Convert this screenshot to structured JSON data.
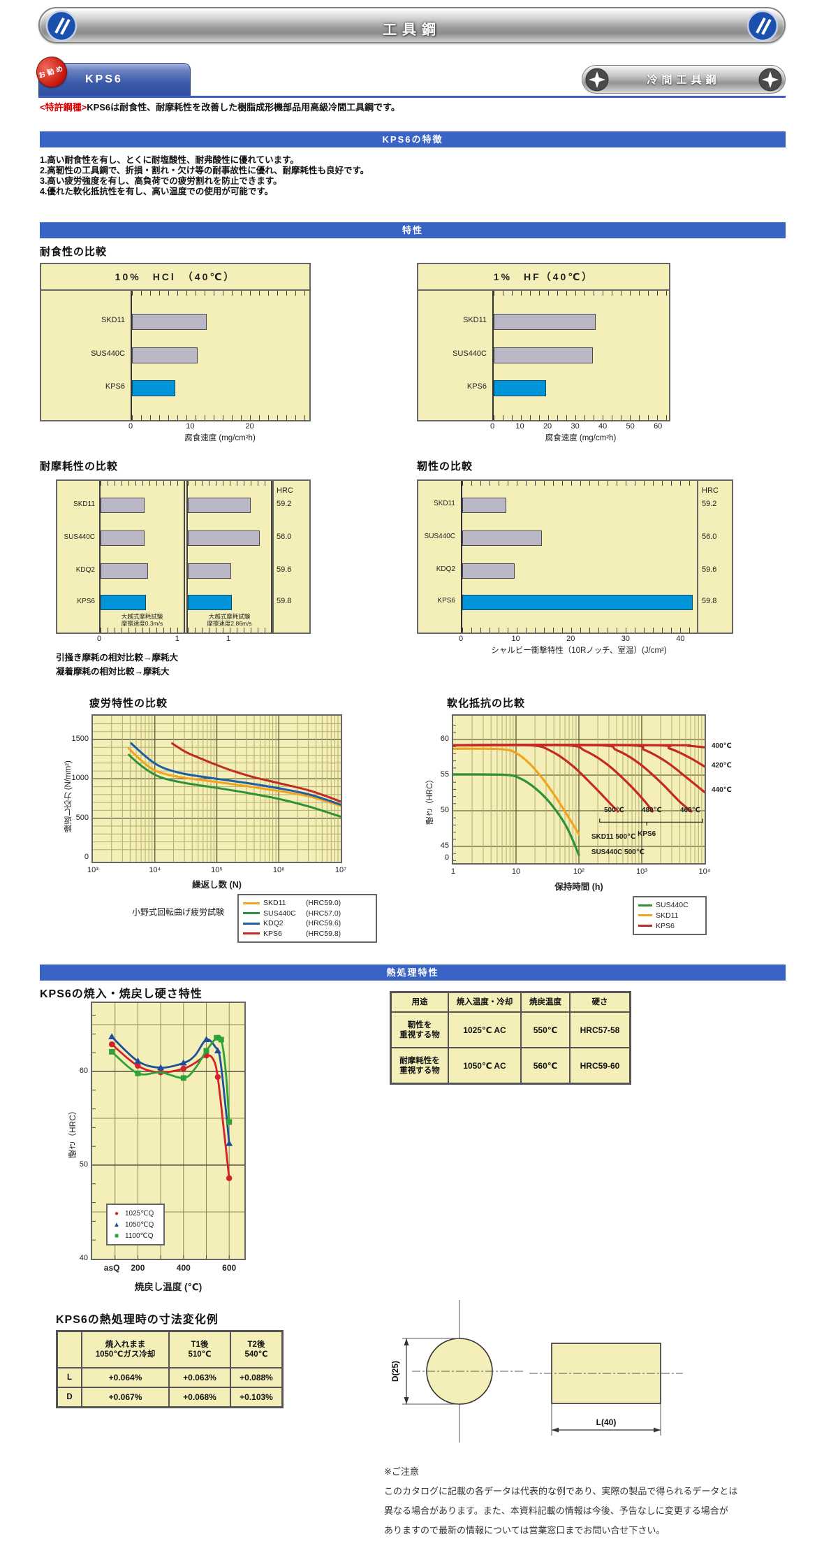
{
  "header": {
    "title": "工具鋼"
  },
  "tab": {
    "badge": "お勧め",
    "label": "KPS6"
  },
  "nav": {
    "label": "冷間工具鋼"
  },
  "intro": {
    "patent": "<特許鋼種>",
    "text": "KPS6は耐食性、耐摩耗性を改善した樹脂成形機部品用高級冷間工具鋼です。"
  },
  "banners": {
    "features": "KPS6の特徴",
    "properties": "特性",
    "heat": "熱処理特性"
  },
  "features": [
    "1.高い耐食性を有し、とくに耐塩酸性、耐弗酸性に優れています。",
    "2.高靭性の工具鋼で、折損・割れ・欠け等の耐事故性に優れ、耐摩耗性も良好です。",
    "3.高い疲労強度を有し、高負荷での疲労割れを防止できます。",
    "4.優れた軟化抵抗性を有し、高い温度での使用が可能です。"
  ],
  "headings": {
    "corrosion": "耐食性の比較",
    "wear": "耐摩耗性の比較",
    "toughness": "靭性の比較",
    "fatigue": "疲労特性の比較",
    "softening": "軟化抵抗の比較",
    "hardening": "KPS6の焼入・焼戻し硬さ特性",
    "dimension": "KPS6の熱処理時の寸法変化例"
  },
  "wear_footnotes": [
    "引掻き摩耗の相対比較→摩耗大",
    "凝着摩耗の相対比較→摩耗大"
  ],
  "chart_data": [
    {
      "id": "hcl",
      "type": "bar",
      "title": "10%　HCl　（40℃）",
      "categories": [
        "SKD11",
        "SUS440C",
        "KPS6"
      ],
      "values": [
        12.5,
        11,
        7.3
      ],
      "xmax": 30,
      "xticks": [
        0,
        10,
        20
      ],
      "xlabel": "腐食速度 (mg/cm²h)",
      "highlight": "KPS6",
      "bar_color": "#b9b7c5",
      "highlight_color": "#0095d8"
    },
    {
      "id": "hf",
      "type": "bar",
      "title": "1%　HF（40℃）",
      "categories": [
        "SKD11",
        "SUS440C",
        "KPS6"
      ],
      "values": [
        37,
        36,
        19
      ],
      "xmax": 64,
      "xticks": [
        0,
        10,
        20,
        30,
        40,
        50,
        60
      ],
      "xlabel": "腐食速度 (mg/cm²h)",
      "highlight": "KPS6",
      "bar_color": "#b9b7c5",
      "highlight_color": "#0095d8"
    },
    {
      "id": "wear",
      "type": "bar-grouped",
      "categories": [
        "SKD11",
        "SUS440C",
        "KDQ2",
        "KPS6"
      ],
      "hrc_header": "HRC",
      "hrc": [
        "59.2",
        "56.0",
        "59.6",
        "59.8"
      ],
      "highlight": "KPS6",
      "panels": [
        {
          "note": "大越式摩耗試験\n摩擦速度0.3m/s",
          "values": [
            0.56,
            0.56,
            0.61,
            0.58
          ],
          "xmax": 1.1
        },
        {
          "note": "大越式摩耗試験\n摩擦速度2.86m/s",
          "values": [
            1.5,
            1.72,
            1.03,
            1.05
          ],
          "xmax": 2.05
        }
      ],
      "xticks": [
        0,
        1
      ]
    },
    {
      "id": "toughness",
      "type": "bar",
      "categories": [
        "SKD11",
        "SUS440C",
        "KDQ2",
        "KPS6"
      ],
      "values": [
        8,
        14.5,
        9.5,
        42
      ],
      "xmax": 43,
      "xticks": [
        0,
        10,
        20,
        30,
        40
      ],
      "xlabel": "シャルビー衝撃特性（10Rノッチ、室温）(J/cm²)",
      "highlight": "KPS6",
      "hrc_header": "HRC",
      "hrc": [
        "59.2",
        "56.0",
        "59.6",
        "59.8"
      ],
      "bar_color": "#b9b7c5",
      "highlight_color": "#0095d8"
    },
    {
      "id": "fatigue",
      "type": "line",
      "title": "疲労特性の比較",
      "xlabel": "繰返し数 (N)",
      "ylabel": "繰返し応力 (N/mm²)",
      "xticklabels": [
        "10³",
        "10⁴",
        "10⁵",
        "10⁶",
        "10⁷"
      ],
      "yticks": [
        0,
        500,
        1000,
        1500
      ],
      "note": "小野式回転曲げ疲労試験",
      "series": [
        {
          "name": "SKD11",
          "hrc": "(HRC59.0)",
          "color": "#f2a41f",
          "points": [
            [
              3.58,
              1385
            ],
            [
              3.75,
              1255
            ],
            [
              3.95,
              1130
            ],
            [
              4.15,
              1065
            ],
            [
              4.5,
              1010
            ],
            [
              5,
              960
            ],
            [
              5.5,
              905
            ],
            [
              6,
              845
            ],
            [
              6.5,
              775
            ],
            [
              7,
              655
            ]
          ]
        },
        {
          "name": "SUS440C",
          "hrc": "(HRC57.0)",
          "color": "#2f9138",
          "points": [
            [
              3.58,
              1305
            ],
            [
              3.75,
              1185
            ],
            [
              3.95,
              1075
            ],
            [
              4.15,
              1005
            ],
            [
              4.5,
              945
            ],
            [
              5,
              885
            ],
            [
              5.5,
              820
            ],
            [
              6,
              745
            ],
            [
              6.5,
              645
            ],
            [
              7,
              520
            ]
          ]
        },
        {
          "name": "KDQ2",
          "hrc": "(HRC59.6)",
          "color": "#1c5ea6",
          "points": [
            [
              3.62,
              1450
            ],
            [
              3.8,
              1320
            ],
            [
              4,
              1195
            ],
            [
              4.2,
              1120
            ],
            [
              4.5,
              1060
            ],
            [
              5,
              1000
            ],
            [
              5.5,
              945
            ],
            [
              6,
              880
            ],
            [
              6.5,
              800
            ],
            [
              7,
              672
            ]
          ]
        },
        {
          "name": "KPS6",
          "hrc": "(HRC59.8)",
          "color": "#c32a24",
          "points": [
            [
              4.28,
              1450
            ],
            [
              4.5,
              1340
            ],
            [
              4.75,
              1255
            ],
            [
              5,
              1175
            ],
            [
              5.3,
              1090
            ],
            [
              5.6,
              1020
            ],
            [
              6,
              945
            ],
            [
              6.5,
              850
            ],
            [
              7,
              712
            ]
          ]
        }
      ]
    },
    {
      "id": "softening",
      "type": "line",
      "title": "軟化抵抗の比較",
      "xlabel": "保持時間 (h)",
      "ylabel": "硬さ（HRC）",
      "xticklabels": [
        "1",
        "10",
        "10²",
        "10³",
        "10⁴"
      ],
      "yticks": [
        60,
        55,
        50,
        45
      ],
      "ytick_zero": "0",
      "legend": [
        {
          "name": "SUS440C",
          "color": "#2f9138"
        },
        {
          "name": "SKD11",
          "color": "#f2a41f"
        },
        {
          "name": "KPS6",
          "color": "#c32a24"
        }
      ],
      "series": [
        {
          "name": "SUS440C 500℃",
          "color": "#2f9138",
          "points": [
            [
              0,
              55.1
            ],
            [
              0.8,
              55.05
            ],
            [
              1.05,
              54.6
            ],
            [
              1.3,
              53.2
            ],
            [
              1.55,
              51
            ],
            [
              1.8,
              47.8
            ],
            [
              2,
              43.8
            ]
          ]
        },
        {
          "name": "SKD11 500℃",
          "color": "#f2a41f",
          "points": [
            [
              0,
              58.7
            ],
            [
              0.75,
              58.65
            ],
            [
              1,
              58.1
            ],
            [
              1.25,
              56.3
            ],
            [
              1.5,
              53.6
            ],
            [
              1.75,
              50.3
            ],
            [
              2,
              46.7
            ]
          ]
        },
        {
          "name": "KPS6 500℃",
          "color": "#c32a24",
          "points": [
            [
              0,
              59.2
            ],
            [
              1.2,
              59.2
            ],
            [
              1.55,
              58.4
            ],
            [
              1.9,
              56.3
            ],
            [
              2.25,
              53.3
            ],
            [
              2.5,
              51
            ],
            [
              2.62,
              49.9
            ]
          ]
        },
        {
          "name": "KPS6 480℃",
          "color": "#c32a24",
          "points": [
            [
              0,
              59.2
            ],
            [
              1.75,
              59.2
            ],
            [
              2.1,
              58.4
            ],
            [
              2.45,
              56.5
            ],
            [
              2.8,
              53.7
            ],
            [
              3.05,
              51.3
            ],
            [
              3.17,
              49.9
            ]
          ]
        },
        {
          "name": "KPS6 460℃",
          "color": "#c32a24",
          "points": [
            [
              0,
              59.2
            ],
            [
              2.25,
              59.2
            ],
            [
              2.6,
              58.5
            ],
            [
              2.95,
              56.7
            ],
            [
              3.3,
              54
            ],
            [
              3.6,
              51.3
            ],
            [
              3.79,
              49.9
            ]
          ]
        },
        {
          "name": "KPS6 440℃",
          "color": "#c32a24",
          "points": [
            [
              0,
              59.2
            ],
            [
              2.7,
              59.2
            ],
            [
              3.05,
              58.5
            ],
            [
              3.4,
              56.8
            ],
            [
              3.75,
              54.4
            ],
            [
              4,
              52.6
            ]
          ]
        },
        {
          "name": "KPS6 420℃",
          "color": "#c32a24",
          "points": [
            [
              0,
              59.2
            ],
            [
              3.1,
              59.2
            ],
            [
              3.45,
              58.7
            ],
            [
              3.75,
              57.5
            ],
            [
              4,
              56.2
            ]
          ]
        },
        {
          "name": "KPS6 400℃",
          "color": "#c32a24",
          "points": [
            [
              0,
              59.2
            ],
            [
              3.4,
              59.2
            ],
            [
              3.75,
              59.1
            ],
            [
              4,
              58.9
            ]
          ]
        }
      ],
      "bracket": {
        "x0": 2.33,
        "x1": 3.97,
        "y": 48.4,
        "center": 3.08
      },
      "inline_labels": [
        {
          "text": "500℃",
          "x": 2.56,
          "y": 49.9
        },
        {
          "text": "480℃",
          "x": 3.16,
          "y": 49.9
        },
        {
          "text": "460℃",
          "x": 3.77,
          "y": 49.9
        },
        {
          "text": "KPS6",
          "x": 3.08,
          "y": 46.6
        },
        {
          "text": "SKD11 500℃",
          "x": 2.55,
          "y": 46.2
        },
        {
          "text": "SUS440C  500℃",
          "x": 2.62,
          "y": 44
        }
      ],
      "right_labels": [
        {
          "text": "400℃",
          "y": 59
        },
        {
          "text": "420℃",
          "y": 56.3
        },
        {
          "text": "440℃",
          "y": 52.8
        }
      ]
    },
    {
      "id": "hardening",
      "type": "line",
      "title": "KPS6の焼入・焼戻し硬さ特性",
      "xlabel": "焼戻し温度 (℃)",
      "ylabel": "硬さ（HRC）",
      "xticklabels": [
        "asQ",
        "200",
        "400",
        "600"
      ],
      "xtickvals": [
        86,
        200,
        400,
        600
      ],
      "yticks": [
        40,
        50,
        60
      ],
      "series": [
        {
          "name": "1025℃Q",
          "marker": "circle",
          "color": "#d6202c",
          "points": [
            [
              "asQ",
              62.9
            ],
            [
              200,
              60.6
            ],
            [
              300,
              59.9
            ],
            [
              400,
              60.3
            ],
            [
              450,
              60.9
            ],
            [
              500,
              61.7
            ],
            [
              530,
              61.3
            ],
            [
              550,
              59.4
            ],
            [
              580,
              53
            ],
            [
              600,
              48.6
            ]
          ],
          "marker_points": [
            [
              "asQ",
              62.9
            ],
            [
              200,
              60.6
            ],
            [
              300,
              59.9
            ],
            [
              400,
              60.3
            ],
            [
              500,
              61.7
            ],
            [
              550,
              59.4
            ],
            [
              600,
              48.6
            ]
          ]
        },
        {
          "name": "1050℃Q",
          "marker": "triangle",
          "color": "#1d4f9c",
          "points": [
            [
              "asQ",
              63.7
            ],
            [
              200,
              61.1
            ],
            [
              300,
              60.4
            ],
            [
              400,
              60.9
            ],
            [
              450,
              61.7
            ],
            [
              500,
              63.4
            ],
            [
              540,
              62.6
            ],
            [
              560,
              61.4
            ],
            [
              585,
              56
            ],
            [
              600,
              52.3
            ]
          ],
          "marker_points": [
            [
              "asQ",
              63.7
            ],
            [
              200,
              61.1
            ],
            [
              300,
              60.4
            ],
            [
              400,
              60.9
            ],
            [
              500,
              63.4
            ],
            [
              550,
              62.2
            ],
            [
              600,
              52.3
            ]
          ]
        },
        {
          "name": "1100℃Q",
          "marker": "square",
          "color": "#2fa23a",
          "points": [
            [
              "asQ",
              62.1
            ],
            [
              200,
              59.8
            ],
            [
              300,
              59.9
            ],
            [
              400,
              59.3
            ],
            [
              450,
              60.3
            ],
            [
              500,
              62.2
            ],
            [
              545,
              63.6
            ],
            [
              565,
              63.4
            ],
            [
              585,
              60
            ],
            [
              600,
              54.6
            ]
          ],
          "marker_points": [
            [
              "asQ",
              62.1
            ],
            [
              200,
              59.8
            ],
            [
              400,
              59.3
            ],
            [
              500,
              62.2
            ],
            [
              545,
              63.6
            ],
            [
              565,
              63.4
            ],
            [
              600,
              54.6
            ]
          ]
        }
      ]
    }
  ],
  "ht_table": {
    "headers": [
      "用途",
      "焼入温度・冷却",
      "焼戻温度",
      "硬さ"
    ],
    "rows": [
      [
        "靭性を\n重視する物",
        "1025℃ AC",
        "550℃",
        "HRC57-58"
      ],
      [
        "耐摩耗性を\n重視する物",
        "1050℃ AC",
        "560℃",
        "HRC59-60"
      ]
    ]
  },
  "dim_table": {
    "headers": [
      "",
      "焼入れまま\n1050℃ガス冷却",
      "T1後\n510℃",
      "T2後\n540℃"
    ],
    "rows": [
      [
        "L",
        "+0.064%",
        "+0.063%",
        "+0.088%"
      ],
      [
        "D",
        "+0.067%",
        "+0.068%",
        "+0.103%"
      ]
    ]
  },
  "diagram": {
    "d_label": "D(25)",
    "l_label": "L(40)"
  },
  "footer": {
    "title": "※ご注意",
    "lines": [
      "このカタログに記載の各データは代表的な例であり、実際の製品で得られるデータとは",
      "異なる場合があります。また、本資料記載の情報は今後、予告なしに変更する場合が",
      "ありますので最新の情報については営業窓口までお問い合せ下さい。"
    ]
  }
}
